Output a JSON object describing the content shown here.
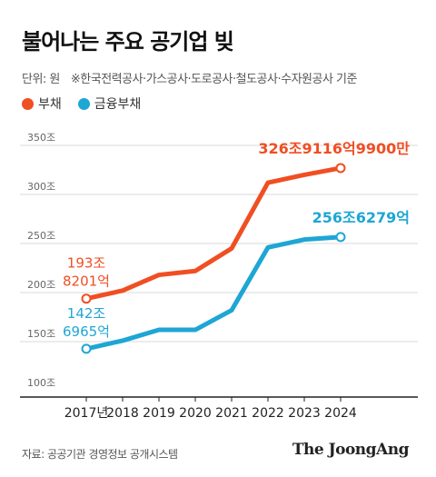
{
  "header": {
    "title": "불어나는 주요 공기업 빚",
    "unit": "단위: 원",
    "basis": "※한국전력공사·가스공사·도로공사·철도공사·수자원공사 기준"
  },
  "colors": {
    "debt": "#f04e23",
    "financial_debt": "#1ea6d4",
    "axis": "#222222",
    "grid": "#d9d9d9"
  },
  "chart_data": {
    "type": "line",
    "categories": [
      "2017년",
      "2018",
      "2019",
      "2020",
      "2021",
      "2022",
      "2023",
      "2024"
    ],
    "y_tick_labels": [
      "100조",
      "150조",
      "200조",
      "250조",
      "300조",
      "350조"
    ],
    "y_ticks": [
      100,
      150,
      200,
      250,
      300,
      350
    ],
    "ylim": [
      100,
      350
    ],
    "grid": true,
    "legend_placement": "top-left",
    "series": [
      {
        "name": "부채",
        "color": "#f04e23",
        "values": [
          193.8,
          202,
          218,
          222,
          245,
          312,
          320,
          326.9
        ],
        "start_label": [
          "193조",
          "8201억"
        ],
        "end_label": "326조9116억9900만"
      },
      {
        "name": "금융부채",
        "color": "#1ea6d4",
        "values": [
          142.7,
          151,
          162,
          162,
          182,
          246,
          254,
          256.6
        ],
        "start_label": [
          "142조",
          "6965억"
        ],
        "end_label": "256조6279억"
      }
    ]
  },
  "footer": {
    "source": "자료: 공공기관 경영정보 공개시스템",
    "brand": "The JoongAng"
  }
}
